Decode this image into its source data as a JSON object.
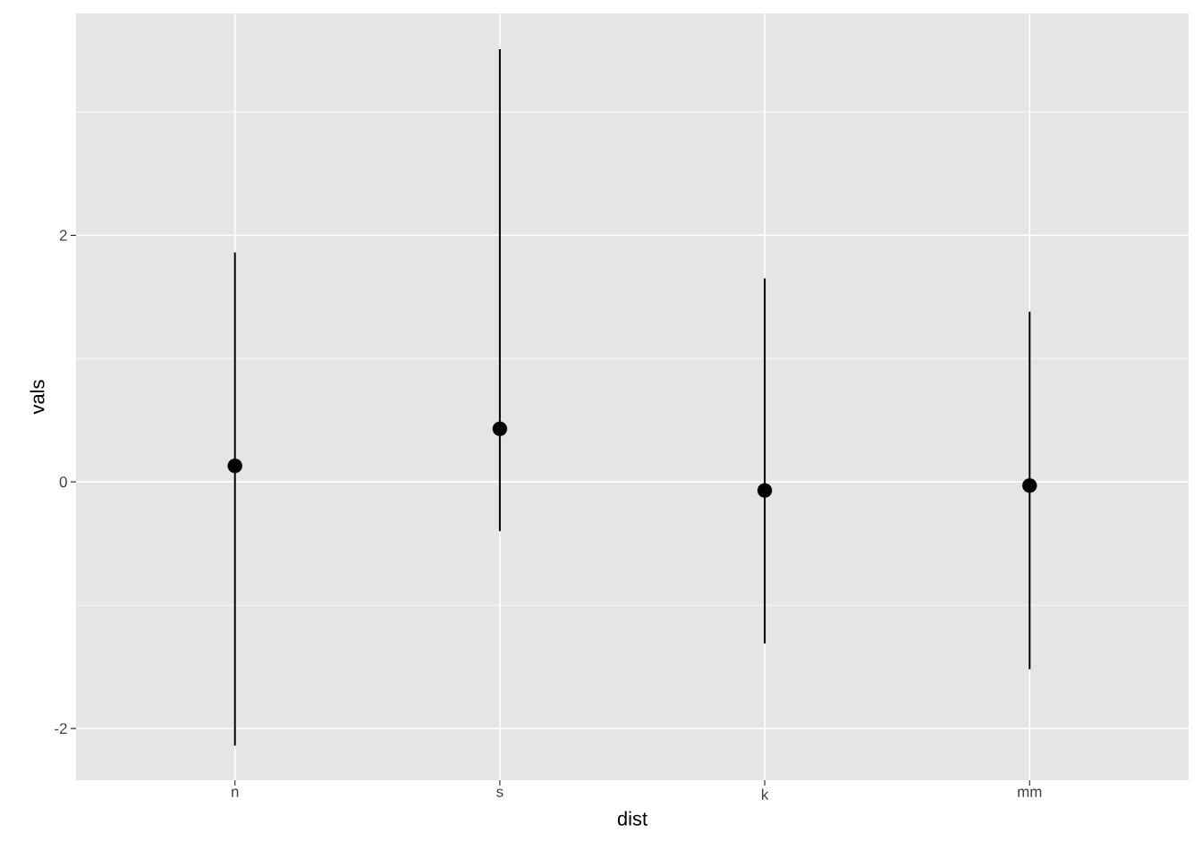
{
  "chart_data": {
    "type": "scatter",
    "xlabel": "dist",
    "ylabel": "vals",
    "categories": [
      "n",
      "s",
      "k",
      "mm"
    ],
    "values": [
      0.13,
      0.43,
      -0.07,
      -0.03
    ],
    "errors": [
      [
        -2.14,
        1.86
      ],
      [
        -0.4,
        3.51
      ],
      [
        -1.31,
        1.65
      ],
      [
        -1.52,
        1.38
      ]
    ],
    "color": "#000000",
    "marker": "circle",
    "grid": true,
    "ylim": [
      -2.42,
      3.8
    ],
    "yticks": [
      -2,
      0,
      2
    ]
  }
}
